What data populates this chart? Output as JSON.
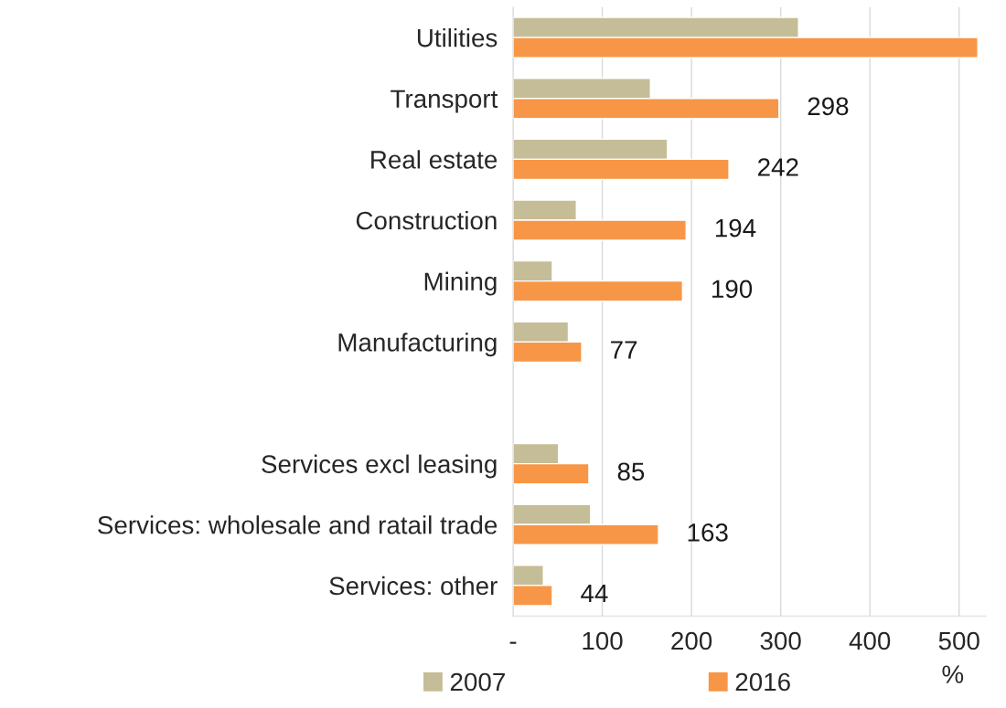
{
  "chart_data": {
    "type": "bar",
    "orientation": "horizontal",
    "categories": [
      "Utilities",
      "Transport",
      "Real estate",
      "Construction",
      "Mining",
      "Manufacturing",
      null,
      "Services excl leasing",
      "Services: wholesale and ratail trade",
      "Services: other"
    ],
    "series": [
      {
        "name": "2007",
        "color": "#c4bd97",
        "values": [
          320,
          154,
          173,
          71,
          44,
          62,
          null,
          51,
          87,
          34
        ]
      },
      {
        "name": "2016",
        "color": "#f79646",
        "values": [
          521,
          298,
          242,
          194,
          190,
          77,
          null,
          85,
          163,
          44
        ],
        "value_labels": [
          null,
          "298",
          "242",
          "194",
          "190",
          "77",
          null,
          "85",
          "163",
          "44"
        ]
      }
    ],
    "xlim": [
      0,
      530
    ],
    "xticks": [
      {
        "value": 0,
        "label": "-"
      },
      100,
      200,
      300,
      400,
      500
    ],
    "xlabel": "%",
    "grid": "x",
    "legend": "bottom"
  }
}
